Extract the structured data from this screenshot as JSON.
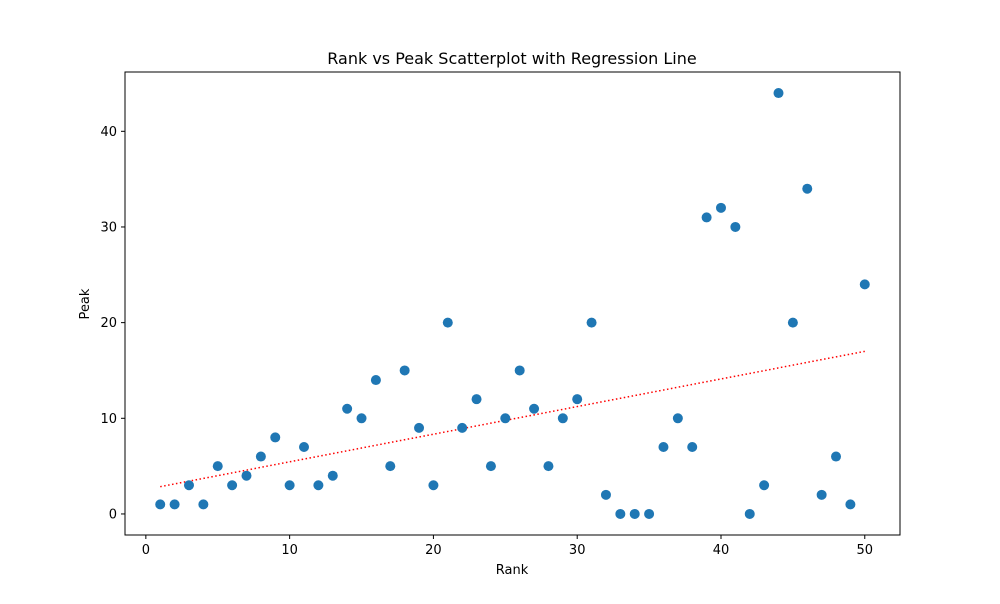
{
  "chart_data": {
    "type": "scatter",
    "title": "Rank vs Peak Scatterplot with Regression Line",
    "xlabel": "Rank",
    "ylabel": "Peak",
    "xlim": [
      -1.45,
      52.45
    ],
    "ylim": [
      -2.2,
      46.2
    ],
    "xticks": [
      0,
      10,
      20,
      30,
      40,
      50
    ],
    "yticks": [
      0,
      10,
      20,
      30,
      40
    ],
    "grid": false,
    "series": [
      {
        "kind": "points",
        "color": "#1f77b4",
        "x": [
          1,
          2,
          3,
          4,
          5,
          6,
          7,
          8,
          9,
          10,
          11,
          12,
          13,
          14,
          15,
          16,
          17,
          18,
          19,
          20,
          21,
          22,
          23,
          24,
          25,
          26,
          27,
          28,
          29,
          30,
          31,
          32,
          33,
          34,
          35,
          36,
          37,
          38,
          39,
          40,
          41,
          42,
          43,
          44,
          45,
          46,
          47,
          48,
          49,
          50
        ],
        "y": [
          1,
          1,
          3,
          1,
          5,
          3,
          4,
          6,
          8,
          3,
          7,
          3,
          4,
          11,
          10,
          14,
          5,
          15,
          9,
          3,
          20,
          9,
          12,
          5,
          10,
          15,
          11,
          5,
          10,
          12,
          20,
          2,
          0,
          0,
          0,
          7,
          10,
          7,
          31,
          32,
          30,
          0,
          3,
          44,
          20,
          34,
          2,
          6,
          1,
          24
        ]
      },
      {
        "kind": "regression",
        "color": "#ff0000",
        "x": [
          1,
          50
        ],
        "y": [
          2.85,
          17.0
        ]
      }
    ]
  }
}
